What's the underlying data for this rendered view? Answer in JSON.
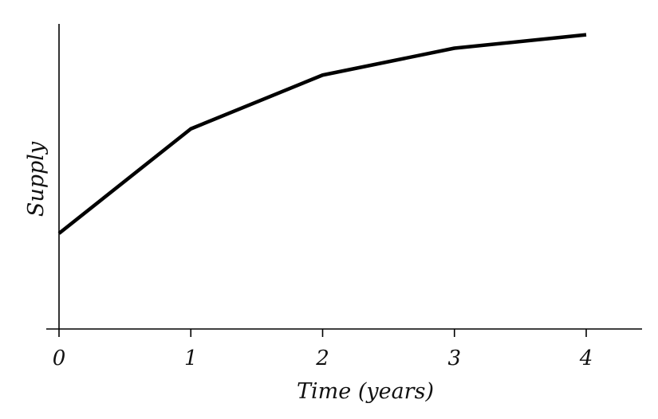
{
  "chart_data": {
    "type": "line",
    "title": "",
    "xlabel": "Time (years)",
    "ylabel": "Supply",
    "x": [
      0,
      1,
      2,
      3,
      4
    ],
    "x_tick_labels": [
      "0",
      "1",
      "2",
      "3",
      "4"
    ],
    "series": [
      {
        "values": [
          0.32,
          0.67,
          0.85,
          0.94,
          0.985
        ]
      }
    ],
    "ylim": [
      0,
      1
    ],
    "y_ticks_shown": false,
    "grid": false,
    "legend": "none",
    "line_color": "#000000"
  }
}
